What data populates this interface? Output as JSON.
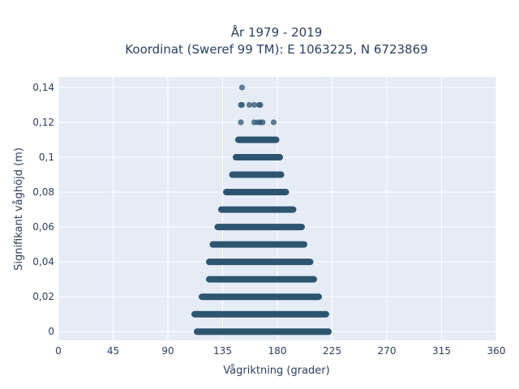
{
  "chart_data": {
    "type": "scatter",
    "title_line1": "År 1979 - 2019",
    "title_line2": "Koordinat (Sweref 99 TM): E 1063225, N 6723869",
    "xlabel": "Vågriktning (grader)",
    "ylabel": "Signifikant våghöjd (m)",
    "xlim": [
      0,
      360
    ],
    "ylim": [
      -0.005,
      0.146
    ],
    "xticks": [
      0,
      45,
      90,
      135,
      180,
      225,
      270,
      315,
      360
    ],
    "xtick_labels": [
      "0",
      "45",
      "90",
      "135",
      "180",
      "225",
      "270",
      "315",
      "360"
    ],
    "yticks": [
      0,
      0.02,
      0.04,
      0.06,
      0.08,
      0.1,
      0.12,
      0.14
    ],
    "ytick_labels": [
      "0",
      "0,02",
      "0,04",
      "0,06",
      "0,08",
      "0,1",
      "0,12",
      "0,14"
    ],
    "grid": true,
    "colors": {
      "marker": "#2e5570",
      "plot_bg": "#e5ecf6",
      "grid": "#ffffff",
      "text": "#2a3f5f"
    },
    "bands": [
      {
        "y": 0.0,
        "x_min": 114,
        "x_max": 222
      },
      {
        "y": 0.01,
        "x_min": 112,
        "x_max": 220
      },
      {
        "y": 0.02,
        "x_min": 118,
        "x_max": 214
      },
      {
        "y": 0.03,
        "x_min": 124,
        "x_max": 210
      },
      {
        "y": 0.04,
        "x_min": 124,
        "x_max": 207
      },
      {
        "y": 0.05,
        "x_min": 127,
        "x_max": 202
      },
      {
        "y": 0.06,
        "x_min": 131,
        "x_max": 200
      },
      {
        "y": 0.07,
        "x_min": 134,
        "x_max": 193
      },
      {
        "y": 0.08,
        "x_min": 138,
        "x_max": 187
      },
      {
        "y": 0.09,
        "x_min": 143,
        "x_max": 183
      },
      {
        "y": 0.1,
        "x_min": 146,
        "x_max": 182
      },
      {
        "y": 0.11,
        "x_min": 148,
        "x_max": 179
      }
    ],
    "points": [
      {
        "x": 150,
        "y": 0.12
      },
      {
        "x": 161,
        "y": 0.12
      },
      {
        "x": 164,
        "y": 0.12
      },
      {
        "x": 166,
        "y": 0.12
      },
      {
        "x": 168,
        "y": 0.12
      },
      {
        "x": 177,
        "y": 0.12
      },
      {
        "x": 150,
        "y": 0.13
      },
      {
        "x": 151,
        "y": 0.13
      },
      {
        "x": 157,
        "y": 0.13
      },
      {
        "x": 161,
        "y": 0.13
      },
      {
        "x": 165,
        "y": 0.13
      },
      {
        "x": 166,
        "y": 0.13
      },
      {
        "x": 151,
        "y": 0.14
      }
    ]
  }
}
